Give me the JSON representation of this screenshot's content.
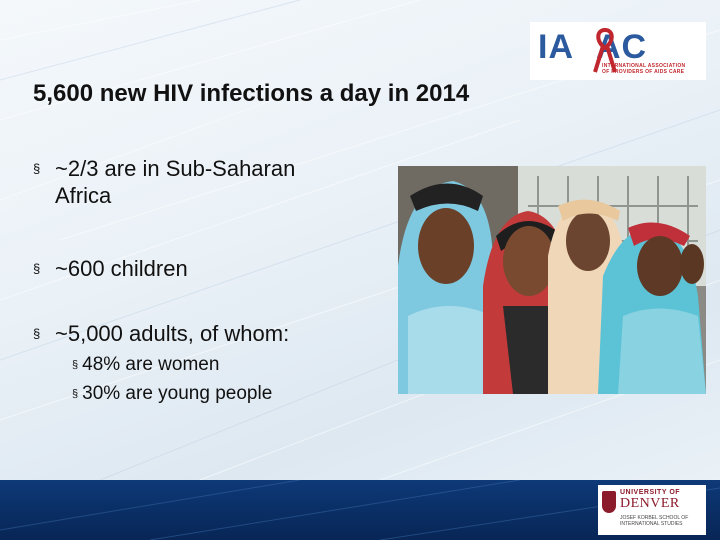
{
  "slide": {
    "title": "5,600 new HIV infections a day in 2014",
    "bullets": [
      {
        "marker": "§",
        "text_line1": "~2/3 are in Sub-Saharan",
        "text_line2": "Africa"
      },
      {
        "marker": "§",
        "text": "~600 children"
      },
      {
        "marker": "§",
        "text": "~5,000 adults, of whom:"
      }
    ],
    "sub_bullets": [
      {
        "marker": "§",
        "text": "48% are women"
      },
      {
        "marker": "§",
        "text": "30% are young people"
      }
    ]
  },
  "logo_iapac": {
    "mark_left": "IA",
    "mark_right": "AC",
    "subtitle_line1": "INTERNATIONAL ASSOCIATION",
    "subtitle_line2": "OF PROVIDERS OF AIDS CARE",
    "colors": {
      "blue": "#2b5a9e",
      "red": "#c0262d"
    }
  },
  "logo_denver": {
    "line1": "UNIVERSITY OF",
    "line2": "DENVER",
    "line3": "JOSEF KORBEL SCHOOL OF INTERNATIONAL STUDIES",
    "color": "#8b1a2b"
  },
  "colors": {
    "band": "#0a2f66",
    "text": "#111111"
  }
}
